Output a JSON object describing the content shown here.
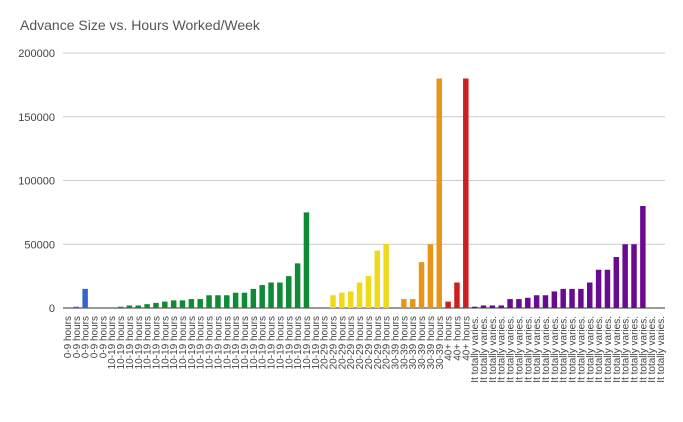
{
  "chart_data": {
    "type": "bar",
    "title": "Advance Size vs. Hours Worked/Week",
    "xlabel": "",
    "ylabel": "",
    "ylim": [
      0,
      200000
    ],
    "yticks": [
      "0",
      "50000",
      "100000",
      "150000",
      "200000"
    ],
    "grid": true,
    "legend": "none",
    "groups": [
      {
        "label": "0-9 hours",
        "color": "#3366cc",
        "values": [
          0,
          1000,
          15000,
          0,
          0
        ]
      },
      {
        "label": "10-19 hours",
        "color": "#0f8a35",
        "values": [
          0,
          1000,
          2000,
          2000,
          3000,
          4000,
          5000,
          6000,
          6000,
          7000,
          7000,
          10000,
          10000,
          10000,
          12000,
          12000,
          15000,
          18000,
          20000,
          20000,
          25000,
          35000,
          75000,
          0
        ]
      },
      {
        "label": "20-29 hours",
        "color": "#f0d916",
        "values": [
          0,
          10000,
          12000,
          13000,
          20000,
          25000,
          45000,
          50000
        ]
      },
      {
        "label": "30-39 hours",
        "color": "#e8961a",
        "values": [
          0,
          7000,
          7000,
          36000,
          50000,
          180000
        ]
      },
      {
        "label": "40+ hours",
        "color": "#cc1f1f",
        "values": [
          5000,
          20000,
          180000
        ]
      },
      {
        "label": "It totally varies.",
        "color": "#6a0a91",
        "values": [
          1000,
          2000,
          2000,
          2000,
          7000,
          7000,
          8000,
          10000,
          10000,
          13000,
          15000,
          15000,
          15000,
          20000,
          30000,
          30000,
          40000,
          50000,
          50000,
          80000,
          0,
          0
        ]
      }
    ]
  }
}
